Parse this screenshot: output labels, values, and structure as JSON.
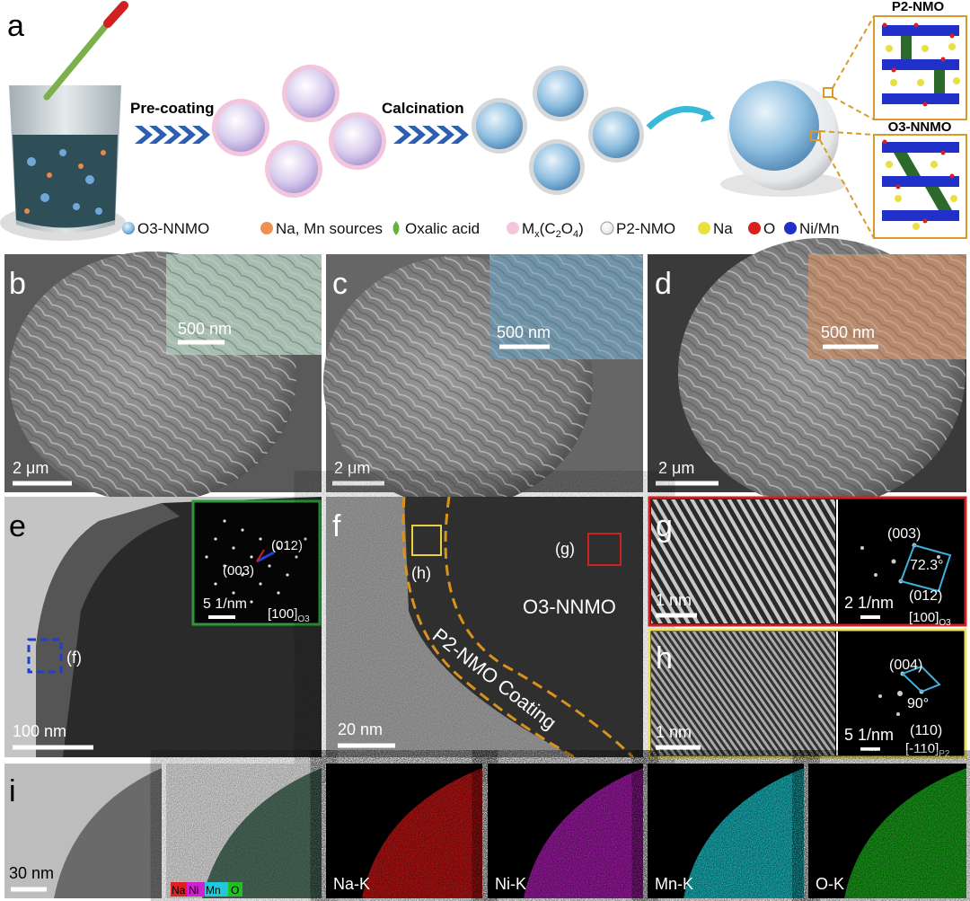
{
  "panel_a": {
    "label": "a",
    "step1": "Pre-coating",
    "step2": "Calcination",
    "structure_top": "P2-NMO",
    "structure_bottom": "O3-NNMO",
    "legend": {
      "o3": "O3-NNMO",
      "sources": "Na, Mn sources",
      "oxalic": "Oxalic acid",
      "mx": [
        "M",
        "x",
        "(C",
        "2",
        "O",
        "4",
        ")"
      ],
      "p2": "P2-NMO",
      "na": "Na",
      "o": "O",
      "nimn": "Ni/Mn"
    }
  },
  "panel_b": {
    "label": "b",
    "inset_scale": "500 nm",
    "scale": "2 μm"
  },
  "panel_c": {
    "label": "c",
    "inset_scale": "500 nm",
    "scale": "2 μm"
  },
  "panel_d": {
    "label": "d",
    "inset_scale": "500 nm",
    "scale": "2 μm"
  },
  "panel_e": {
    "label": "e",
    "spot1": "(012)",
    "spot2": "(003)",
    "inset_scale": "5 1/nm",
    "zone": [
      "[100]",
      "O3"
    ],
    "box": "(f)",
    "scale": "100 nm"
  },
  "panel_f": {
    "label": "f",
    "box_h": "(h)",
    "box_g": "(g)",
    "core": "O3-NNMO",
    "coating": "P2-NMO Coating",
    "scale": "20 nm"
  },
  "panel_g": {
    "label": "g",
    "scale": "1 nm",
    "spot1": "(003)",
    "angle": "72.3°",
    "spot2": "(012)",
    "fft_scale": "2 1/nm",
    "zone": [
      "[100]",
      "O3"
    ]
  },
  "panel_h": {
    "label": "h",
    "scale": "1 nm",
    "spot1": "(004)",
    "angle": "90°",
    "spot2": "(110)",
    "fft_scale": "5 1/nm",
    "zone": [
      "[-110]",
      "P2"
    ]
  },
  "panel_i": {
    "label": "i",
    "scale": "30 nm",
    "overlay": [
      "Na",
      "Ni",
      "Mn",
      "O"
    ],
    "maps": [
      "Na-K",
      "Ni-K",
      "Mn-K",
      "O-K"
    ]
  }
}
